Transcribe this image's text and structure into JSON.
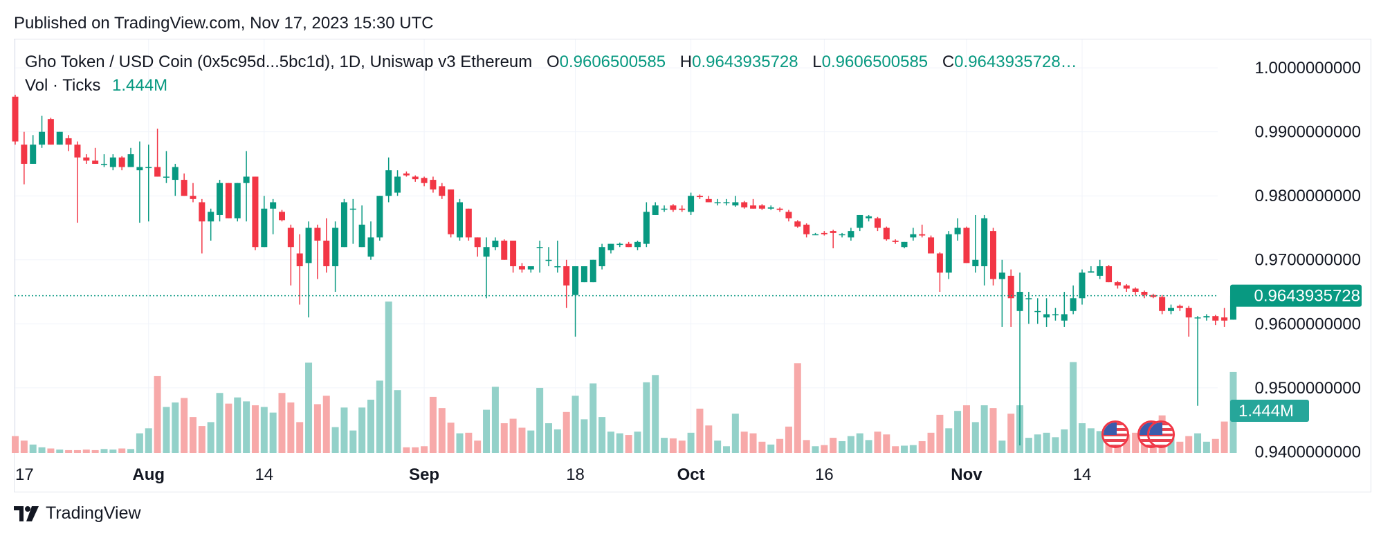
{
  "header": {
    "published": "Published on TradingView.com, Nov 17, 2023 15:30 UTC"
  },
  "legend": {
    "symbol": "Gho Token / USD Coin (0x5c95d...5bc1d), 1D, Uniswap v3 Ethereum",
    "o_label": "O",
    "o_value": "0.9606500585",
    "h_label": "H",
    "h_value": "0.9643935728",
    "l_label": "L",
    "l_value": "0.9606500585",
    "c_label": "C",
    "c_value": "0.9643935728…",
    "vol_label": "Vol · Ticks",
    "vol_value": "1.444M"
  },
  "footer": {
    "brand": "TradingView"
  },
  "colors": {
    "up": "#089981",
    "down": "#f23645",
    "up_volume": "#93d1c9",
    "down_volume": "#f7a9a9",
    "grid": "#f0f3fa",
    "text": "#131722"
  },
  "chart_data": {
    "type": "candlestick",
    "title": "Gho Token / USD Coin (0x5c95d...5bc1d), 1D, Uniswap v3 Ethereum",
    "price_axis": {
      "ticks": [
        1.0,
        0.99,
        0.98,
        0.97,
        0.96,
        0.95,
        0.94
      ],
      "tick_labels": [
        "1.0000000000",
        "0.9900000000",
        "0.9800000000",
        "0.9700000000",
        "0.9600000000",
        "0.9500000000",
        "0.9400000000"
      ],
      "range": [
        0.9355,
        1.0025
      ],
      "last_price": 0.9643935728,
      "last_price_label": "0.9643935728"
    },
    "volume_axis": {
      "last_volume_label": "1.444M",
      "max_volume": 1.85
    },
    "time_axis": {
      "labels": [
        {
          "text": "17",
          "day_index": 0,
          "bold": false
        },
        {
          "text": "Aug",
          "day_index": 15,
          "bold": true
        },
        {
          "text": "14",
          "day_index": 28,
          "bold": false
        },
        {
          "text": "Sep",
          "day_index": 46,
          "bold": true
        },
        {
          "text": "18",
          "day_index": 63,
          "bold": false
        },
        {
          "text": "Oct",
          "day_index": 76,
          "bold": true
        },
        {
          "text": "16",
          "day_index": 91,
          "bold": false
        },
        {
          "text": "Nov",
          "day_index": 107,
          "bold": true
        },
        {
          "text": "14",
          "day_index": 120,
          "bold": false
        }
      ]
    },
    "ohlcv": [
      [
        0.9955,
        0.9958,
        0.988,
        0.9885,
        0.3
      ],
      [
        0.988,
        0.99,
        0.9818,
        0.985,
        0.22
      ],
      [
        0.985,
        0.9895,
        0.985,
        0.988,
        0.15
      ],
      [
        0.988,
        0.9925,
        0.9875,
        0.99,
        0.1
      ],
      [
        0.992,
        0.9922,
        0.988,
        0.988,
        0.08
      ],
      [
        0.988,
        0.99,
        0.988,
        0.99,
        0.06
      ],
      [
        0.989,
        0.9895,
        0.987,
        0.988,
        0.05
      ],
      [
        0.988,
        0.9885,
        0.9758,
        0.986,
        0.05
      ],
      [
        0.986,
        0.9865,
        0.985,
        0.9855,
        0.06
      ],
      [
        0.9855,
        0.9875,
        0.985,
        0.985,
        0.05
      ],
      [
        0.985,
        0.9865,
        0.9845,
        0.985,
        0.07
      ],
      [
        0.9845,
        0.9865,
        0.984,
        0.986,
        0.06
      ],
      [
        0.986,
        0.9862,
        0.984,
        0.9845,
        0.08
      ],
      [
        0.9845,
        0.9875,
        0.9845,
        0.9865,
        0.07
      ],
      [
        0.984,
        0.9885,
        0.9758,
        0.9845,
        0.35
      ],
      [
        0.9845,
        0.988,
        0.976,
        0.9845,
        0.44
      ],
      [
        0.9845,
        0.9905,
        0.983,
        0.983,
        1.37
      ],
      [
        0.983,
        0.987,
        0.982,
        0.983,
        0.82
      ],
      [
        0.9825,
        0.985,
        0.98,
        0.9845,
        0.9
      ],
      [
        0.9825,
        0.9835,
        0.98,
        0.98,
        0.98
      ],
      [
        0.98,
        0.982,
        0.979,
        0.9795,
        0.64
      ],
      [
        0.979,
        0.9795,
        0.971,
        0.976,
        0.48
      ],
      [
        0.976,
        0.978,
        0.973,
        0.9775,
        0.55
      ],
      [
        0.977,
        0.9825,
        0.976,
        0.982,
        1.07
      ],
      [
        0.982,
        0.982,
        0.9765,
        0.9765,
        0.88
      ],
      [
        0.9765,
        0.982,
        0.976,
        0.982,
        0.99
      ],
      [
        0.982,
        0.987,
        0.976,
        0.983,
        0.92
      ],
      [
        0.983,
        0.983,
        0.9715,
        0.972,
        0.85
      ],
      [
        0.972,
        0.98,
        0.972,
        0.978,
        0.82
      ],
      [
        0.978,
        0.9795,
        0.974,
        0.979,
        0.72
      ],
      [
        0.9775,
        0.9778,
        0.976,
        0.9762,
        1.07
      ],
      [
        0.975,
        0.9755,
        0.966,
        0.972,
        0.9
      ],
      [
        0.971,
        0.974,
        0.963,
        0.969,
        0.55
      ],
      [
        0.9695,
        0.976,
        0.961,
        0.975,
        1.61
      ],
      [
        0.975,
        0.9755,
        0.967,
        0.973,
        0.87
      ],
      [
        0.973,
        0.9765,
        0.968,
        0.969,
        1.02
      ],
      [
        0.969,
        0.976,
        0.965,
        0.975,
        0.46
      ],
      [
        0.972,
        0.9795,
        0.972,
        0.979,
        0.81
      ],
      [
        0.978,
        0.9795,
        0.9725,
        0.978,
        0.4
      ],
      [
        0.972,
        0.9785,
        0.972,
        0.9755,
        0.81
      ],
      [
        0.9705,
        0.976,
        0.97,
        0.9735,
        0.95
      ],
      [
        0.9735,
        0.98,
        0.973,
        0.98,
        1.29
      ],
      [
        0.98,
        0.986,
        0.979,
        0.984,
        2.7
      ],
      [
        0.9805,
        0.984,
        0.98,
        0.983,
        1.12
      ],
      [
        0.9835,
        0.9838,
        0.983,
        0.9832,
        0.1
      ],
      [
        0.983,
        0.9832,
        0.9822,
        0.9826,
        0.1
      ],
      [
        0.9828,
        0.983,
        0.9815,
        0.982,
        0.12
      ],
      [
        0.9825,
        0.983,
        0.9805,
        0.981,
        1.0
      ],
      [
        0.9815,
        0.982,
        0.9795,
        0.98,
        0.8
      ],
      [
        0.981,
        0.981,
        0.9735,
        0.974,
        0.54
      ],
      [
        0.9735,
        0.9795,
        0.973,
        0.979,
        0.35
      ],
      [
        0.978,
        0.978,
        0.973,
        0.9735,
        0.36
      ],
      [
        0.9735,
        0.9735,
        0.9705,
        0.972,
        0.22
      ],
      [
        0.9705,
        0.9735,
        0.964,
        0.972,
        0.77
      ],
      [
        0.972,
        0.9735,
        0.9715,
        0.973,
        1.18
      ],
      [
        0.973,
        0.9732,
        0.97,
        0.97,
        0.53
      ],
      [
        0.973,
        0.973,
        0.968,
        0.969,
        0.61
      ],
      [
        0.969,
        0.9695,
        0.968,
        0.9685,
        0.45
      ],
      [
        0.9685,
        0.969,
        0.968,
        0.969,
        0.4
      ],
      [
        0.972,
        0.973,
        0.968,
        0.972,
        1.16
      ],
      [
        0.97,
        0.972,
        0.969,
        0.97,
        0.53
      ],
      [
        0.969,
        0.973,
        0.968,
        0.969,
        0.42
      ],
      [
        0.969,
        0.97,
        0.9625,
        0.966,
        0.73
      ],
      [
        0.9645,
        0.969,
        0.958,
        0.969,
        1.02
      ],
      [
        0.9665,
        0.969,
        0.9665,
        0.969,
        0.6
      ],
      [
        0.9665,
        0.97,
        0.9665,
        0.97,
        1.24
      ],
      [
        0.969,
        0.9725,
        0.9685,
        0.972,
        0.64
      ],
      [
        0.9715,
        0.9725,
        0.971,
        0.9725,
        0.38
      ],
      [
        0.9725,
        0.9727,
        0.972,
        0.9725,
        0.35
      ],
      [
        0.9725,
        0.9728,
        0.972,
        0.972,
        0.32
      ],
      [
        0.972,
        0.973,
        0.9715,
        0.9728,
        0.38
      ],
      [
        0.9725,
        0.979,
        0.972,
        0.9775,
        1.26
      ],
      [
        0.977,
        0.979,
        0.977,
        0.9785,
        1.39
      ],
      [
        0.978,
        0.9785,
        0.9775,
        0.978,
        0.27
      ],
      [
        0.9785,
        0.9787,
        0.9775,
        0.9778,
        0.26
      ],
      [
        0.978,
        0.9785,
        0.9775,
        0.9778,
        0.22
      ],
      [
        0.9775,
        0.9805,
        0.977,
        0.98,
        0.36
      ],
      [
        0.98,
        0.9802,
        0.9795,
        0.9798,
        0.79
      ],
      [
        0.9795,
        0.98,
        0.979,
        0.979,
        0.49
      ],
      [
        0.979,
        0.9795,
        0.9785,
        0.979,
        0.22
      ],
      [
        0.979,
        0.9795,
        0.9785,
        0.979,
        0.12
      ],
      [
        0.9785,
        0.98,
        0.9783,
        0.979,
        0.7
      ],
      [
        0.979,
        0.9792,
        0.978,
        0.9782,
        0.38
      ],
      [
        0.9785,
        0.9795,
        0.978,
        0.978,
        0.35
      ],
      [
        0.9785,
        0.9787,
        0.9778,
        0.978,
        0.2
      ],
      [
        0.978,
        0.9785,
        0.9778,
        0.9782,
        0.15
      ],
      [
        0.978,
        0.9782,
        0.9775,
        0.9778,
        0.25
      ],
      [
        0.9775,
        0.9778,
        0.976,
        0.9765,
        0.47
      ],
      [
        0.976,
        0.9762,
        0.975,
        0.9752,
        1.6
      ],
      [
        0.9755,
        0.9757,
        0.9735,
        0.974,
        0.23
      ],
      [
        0.974,
        0.9742,
        0.974,
        0.974,
        0.12
      ],
      [
        0.9742,
        0.9745,
        0.9738,
        0.974,
        0.14
      ],
      [
        0.9745,
        0.9747,
        0.9718,
        0.9742,
        0.27
      ],
      [
        0.974,
        0.9742,
        0.9735,
        0.974,
        0.21
      ],
      [
        0.9735,
        0.975,
        0.973,
        0.9745,
        0.3
      ],
      [
        0.975,
        0.977,
        0.9745,
        0.977,
        0.35
      ],
      [
        0.9765,
        0.977,
        0.976,
        0.9768,
        0.23
      ],
      [
        0.9765,
        0.9767,
        0.9745,
        0.975,
        0.38
      ],
      [
        0.975,
        0.9752,
        0.973,
        0.9732,
        0.33
      ],
      [
        0.973,
        0.9732,
        0.9725,
        0.9728,
        0.12
      ],
      [
        0.972,
        0.9728,
        0.9718,
        0.9728,
        0.13
      ],
      [
        0.9735,
        0.975,
        0.973,
        0.974,
        0.14
      ],
      [
        0.974,
        0.9755,
        0.9735,
        0.9738,
        0.21
      ],
      [
        0.9735,
        0.9738,
        0.971,
        0.971,
        0.36
      ],
      [
        0.971,
        0.9712,
        0.965,
        0.968,
        0.68
      ],
      [
        0.968,
        0.9745,
        0.967,
        0.974,
        0.44
      ],
      [
        0.974,
        0.9765,
        0.973,
        0.975,
        0.75
      ],
      [
        0.975,
        0.9752,
        0.9695,
        0.9695,
        0.85
      ],
      [
        0.969,
        0.977,
        0.968,
        0.97,
        0.55
      ],
      [
        0.969,
        0.977,
        0.966,
        0.9765,
        0.85
      ],
      [
        0.9745,
        0.975,
        0.966,
        0.967,
        0.8
      ],
      [
        0.967,
        0.97,
        0.9595,
        0.968,
        0.22
      ],
      [
        0.9675,
        0.9685,
        0.9595,
        0.964,
        0.7
      ],
      [
        0.962,
        0.968,
        0.941,
        0.965,
        0.85
      ],
      [
        0.964,
        0.965,
        0.96,
        0.964,
        0.27
      ],
      [
        0.962,
        0.964,
        0.96,
        0.962,
        0.33
      ],
      [
        0.961,
        0.964,
        0.9595,
        0.9615,
        0.36
      ],
      [
        0.9615,
        0.9625,
        0.9605,
        0.9615,
        0.28
      ],
      [
        0.9605,
        0.965,
        0.9595,
        0.9615,
        0.42
      ],
      [
        0.962,
        0.966,
        0.9615,
        0.964,
        1.62
      ],
      [
        0.964,
        0.9685,
        0.963,
        0.968,
        0.53
      ],
      [
        0.968,
        0.969,
        0.968,
        0.9682,
        0.44
      ],
      [
        0.9675,
        0.97,
        0.967,
        0.969,
        0.39
      ],
      [
        0.969,
        0.9692,
        0.9665,
        0.9665,
        0.33
      ],
      [
        0.9665,
        0.9667,
        0.9655,
        0.966,
        0.28
      ],
      [
        0.966,
        0.9662,
        0.965,
        0.9655,
        0.33
      ],
      [
        0.9655,
        0.9657,
        0.9645,
        0.965,
        0.36
      ],
      [
        0.965,
        0.9652,
        0.964,
        0.9645,
        0.32
      ],
      [
        0.9645,
        0.9647,
        0.964,
        0.9642,
        0.28
      ],
      [
        0.9642,
        0.9645,
        0.9615,
        0.962,
        0.67
      ],
      [
        0.962,
        0.963,
        0.9615,
        0.9625,
        0.36
      ],
      [
        0.9628,
        0.963,
        0.962,
        0.9625,
        0.2
      ],
      [
        0.9625,
        0.9628,
        0.958,
        0.961,
        0.3
      ],
      [
        0.961,
        0.9612,
        0.9472,
        0.961,
        0.35
      ],
      [
        0.961,
        0.9615,
        0.9605,
        0.9612,
        0.2
      ],
      [
        0.9612,
        0.9614,
        0.9598,
        0.9605,
        0.25
      ],
      [
        0.961,
        0.9625,
        0.9595,
        0.9605,
        0.56
      ],
      [
        0.9606500585,
        0.9643935728,
        0.9606500585,
        0.9643935728,
        1.444
      ]
    ]
  }
}
